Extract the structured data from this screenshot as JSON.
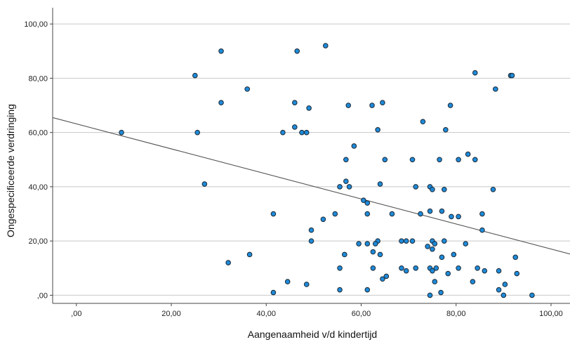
{
  "chart_data": {
    "type": "scatter",
    "xlabel": "Aangenaamheid v/d kindertijd",
    "ylabel": "Ongespecificeerde verdringing",
    "xlim": [
      -5,
      104
    ],
    "ylim": [
      -3,
      106
    ],
    "x_ticks": [
      0,
      20,
      40,
      60,
      80,
      100
    ],
    "y_ticks": [
      0,
      20,
      40,
      60,
      80,
      100
    ],
    "x_tick_labels": [
      ",00",
      "20,00",
      "40,00",
      "60,00",
      "80,00",
      "100,00"
    ],
    "y_tick_labels": [
      ",00",
      "20,00",
      "40,00",
      "60,00",
      "80,00",
      "100,00"
    ],
    "grid": "horizontal",
    "colors": {
      "marker_fill": "#1f8ad8",
      "marker_edge": "#1a2733",
      "fit_line": "#555555",
      "grid": "#c8c8c8"
    },
    "fit_line": {
      "x": [
        -5,
        104
      ],
      "y": [
        65.5,
        15.2
      ]
    },
    "series": [
      {
        "points": [
          [
            9.5,
            60
          ],
          [
            25,
            81
          ],
          [
            25.5,
            60
          ],
          [
            27,
            41
          ],
          [
            30.5,
            90
          ],
          [
            30.5,
            71
          ],
          [
            32,
            12
          ],
          [
            36,
            76
          ],
          [
            36.5,
            15
          ],
          [
            41.5,
            30
          ],
          [
            41.5,
            1
          ],
          [
            43.5,
            60
          ],
          [
            44.5,
            5
          ],
          [
            46,
            71
          ],
          [
            46,
            62
          ],
          [
            46.5,
            90
          ],
          [
            47.5,
            60
          ],
          [
            48.5,
            60
          ],
          [
            48.5,
            4
          ],
          [
            49,
            69
          ],
          [
            49.5,
            24
          ],
          [
            49.5,
            20
          ],
          [
            52.5,
            92
          ],
          [
            52,
            28
          ],
          [
            54.5,
            30
          ],
          [
            55.5,
            40
          ],
          [
            55.5,
            10
          ],
          [
            55.5,
            2
          ],
          [
            56.5,
            15
          ],
          [
            56.8,
            50
          ],
          [
            56.8,
            42
          ],
          [
            57.3,
            70
          ],
          [
            57.5,
            40
          ],
          [
            58.5,
            55
          ],
          [
            59.5,
            19
          ],
          [
            60.5,
            35
          ],
          [
            61.3,
            34
          ],
          [
            61.3,
            30
          ],
          [
            61.3,
            19
          ],
          [
            61.3,
            2
          ],
          [
            62.3,
            70
          ],
          [
            62.5,
            16
          ],
          [
            62.5,
            10
          ],
          [
            63.5,
            61
          ],
          [
            63.5,
            20
          ],
          [
            63,
            19
          ],
          [
            64,
            41
          ],
          [
            64,
            15
          ],
          [
            64.5,
            6
          ],
          [
            64.5,
            71
          ],
          [
            65,
            50
          ],
          [
            65.3,
            7
          ],
          [
            66.5,
            30
          ],
          [
            68.5,
            20
          ],
          [
            68.5,
            10
          ],
          [
            69.5,
            20
          ],
          [
            69.5,
            9
          ],
          [
            70.8,
            50
          ],
          [
            70.8,
            20
          ],
          [
            71.5,
            40
          ],
          [
            71.5,
            10
          ],
          [
            72.5,
            30
          ],
          [
            73,
            64
          ],
          [
            74,
            18
          ],
          [
            74.5,
            40
          ],
          [
            74.5,
            31
          ],
          [
            74.5,
            10
          ],
          [
            74.5,
            0
          ],
          [
            75,
            39
          ],
          [
            75,
            20
          ],
          [
            75,
            17
          ],
          [
            75,
            9
          ],
          [
            75.5,
            19
          ],
          [
            75.5,
            5
          ],
          [
            75.8,
            10
          ],
          [
            76.5,
            50
          ],
          [
            76.8,
            1
          ],
          [
            77,
            31
          ],
          [
            77,
            14
          ],
          [
            77.5,
            39
          ],
          [
            77.5,
            20
          ],
          [
            77.8,
            61
          ],
          [
            78.3,
            8
          ],
          [
            78.8,
            70
          ],
          [
            79,
            29
          ],
          [
            79.5,
            15
          ],
          [
            80.5,
            50
          ],
          [
            80.5,
            29
          ],
          [
            80.5,
            10
          ],
          [
            82,
            19
          ],
          [
            82.5,
            52
          ],
          [
            83.5,
            5
          ],
          [
            84,
            50
          ],
          [
            84,
            82
          ],
          [
            84.5,
            10
          ],
          [
            85.5,
            30
          ],
          [
            85.5,
            24
          ],
          [
            86,
            9
          ],
          [
            87.8,
            39
          ],
          [
            88.3,
            76
          ],
          [
            89,
            9
          ],
          [
            89,
            2
          ],
          [
            90,
            0
          ],
          [
            90.3,
            4
          ],
          [
            91.5,
            81
          ],
          [
            91.8,
            81
          ],
          [
            92.5,
            14
          ],
          [
            92.8,
            8
          ],
          [
            96,
            0
          ]
        ]
      }
    ]
  }
}
